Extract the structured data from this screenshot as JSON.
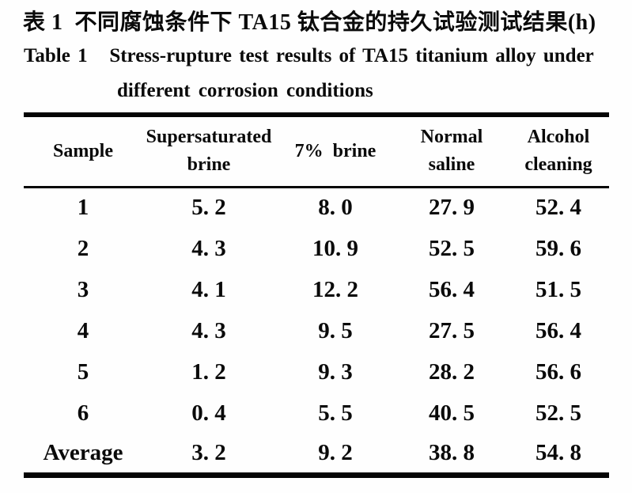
{
  "page": {
    "caption_zh": "表 1  不同腐蚀条件下 TA15 钛合金的持久试验测试结果(h)",
    "caption_en_line1": "Table 1   Stress-rupture test results of TA15 titanium alloy under",
    "caption_en_line2": "different corrosion conditions"
  },
  "table": {
    "columns": [
      {
        "line1": "Sample",
        "line2": ""
      },
      {
        "line1": "Supersaturated",
        "line2": "brine"
      },
      {
        "line1": "7%  brine",
        "line2": ""
      },
      {
        "line1": "Normal",
        "line2": "saline"
      },
      {
        "line1": "Alcohol",
        "line2": "cleaning"
      }
    ],
    "rows": [
      [
        "1",
        "5. 2",
        "8. 0",
        "27. 9",
        "52. 4"
      ],
      [
        "2",
        "4. 3",
        "10. 9",
        "52. 5",
        "59. 6"
      ],
      [
        "3",
        "4. 1",
        "12. 2",
        "56. 4",
        "51. 5"
      ],
      [
        "4",
        "4. 3",
        "9. 5",
        "27. 5",
        "56. 4"
      ],
      [
        "5",
        "1. 2",
        "9. 3",
        "28. 2",
        "56. 6"
      ],
      [
        "6",
        "0. 4",
        "5. 5",
        "40. 5",
        "52. 5"
      ],
      [
        "Average",
        "3. 2",
        "9. 2",
        "38. 8",
        "54. 8"
      ]
    ]
  }
}
